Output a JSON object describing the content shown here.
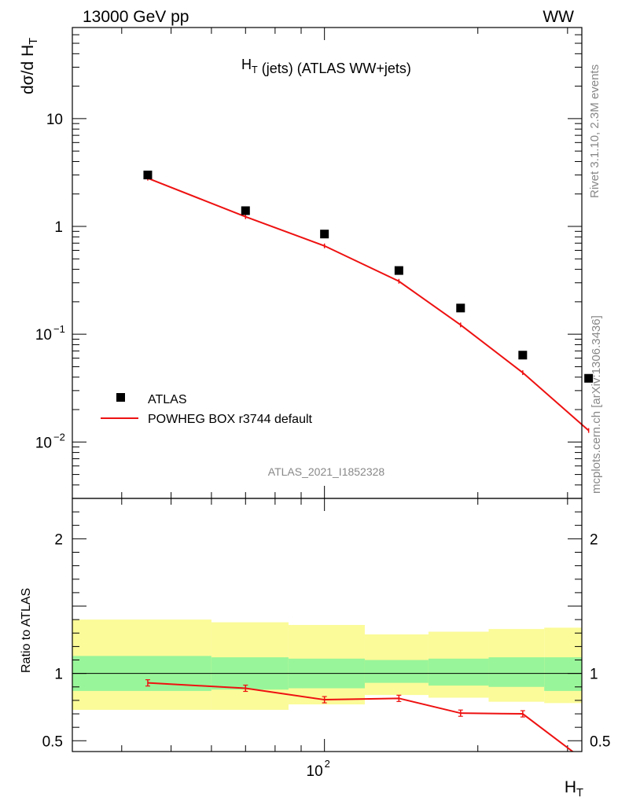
{
  "header": {
    "left": "13000 GeV pp",
    "right": "WW"
  },
  "side_labels": {
    "top": "Rivet 3.1.10,  2.3M events",
    "bottom": "mcplots.cern.ch [arXiv:1306.3436]"
  },
  "analysis_id": "ATLAS_2021_I1852328",
  "colors": {
    "mc": "#ee1111",
    "data": "#000000",
    "band_green": "#99f599",
    "band_yellow": "#fbfb99",
    "ref_line": "#000000"
  },
  "chart_data": [
    {
      "type": "scatter",
      "title": "H_T (jets) (ATLAS WW+jets)",
      "ylabel": "dσ/d H_T",
      "xlabel": "H_T",
      "log_x": true,
      "log_y": true,
      "xlim": [
        32,
        320
      ],
      "ylim": [
        0.003,
        70
      ],
      "y_ticks": [
        {
          "value": 10,
          "label": "10"
        },
        {
          "value": 1,
          "label": "1"
        },
        {
          "value": 0.1,
          "label": "10",
          "sup": "−1"
        },
        {
          "value": 0.01,
          "label": "10",
          "sup": "−2"
        }
      ],
      "legend": {
        "position": "lower-left",
        "entries": [
          "ATLAS",
          "POWHEG BOX r3744 default"
        ]
      },
      "series": [
        {
          "name": "ATLAS",
          "marker": "square",
          "x": [
            45,
            70,
            100,
            140,
            185,
            245,
            330
          ],
          "y": [
            3.0,
            1.4,
            0.85,
            0.39,
            0.175,
            0.064,
            0.039
          ]
        },
        {
          "name": "POWHEG BOX r3744 default",
          "marker": "line",
          "x": [
            45,
            70,
            100,
            140,
            185,
            245,
            330
          ],
          "y": [
            2.8,
            1.23,
            0.66,
            0.31,
            0.122,
            0.044,
            0.0128
          ]
        }
      ]
    },
    {
      "type": "line",
      "ylabel": "Ratio to ATLAS",
      "xlabel": "H_T",
      "log_x": true,
      "xlim": [
        32,
        320
      ],
      "ylim": [
        0.42,
        2.3
      ],
      "y_ticks": [
        {
          "value": 2,
          "label": "2"
        },
        {
          "value": 1,
          "label": "1"
        },
        {
          "value": 0.5,
          "label": "0.5"
        }
      ],
      "x_ticks": [
        {
          "value": 100,
          "label": "10",
          "sup": "2"
        }
      ],
      "reference": 1,
      "bands": [
        {
          "x_range": [
            32,
            60
          ],
          "green": [
            0.87,
            1.13
          ],
          "yellow": [
            0.73,
            1.4
          ]
        },
        {
          "x_range": [
            60,
            85
          ],
          "green": [
            0.88,
            1.12
          ],
          "yellow": [
            0.73,
            1.38
          ]
        },
        {
          "x_range": [
            85,
            120
          ],
          "green": [
            0.89,
            1.11
          ],
          "yellow": [
            0.77,
            1.36
          ]
        },
        {
          "x_range": [
            120,
            160
          ],
          "green": [
            0.93,
            1.1
          ],
          "yellow": [
            0.84,
            1.29
          ]
        },
        {
          "x_range": [
            160,
            210
          ],
          "green": [
            0.91,
            1.11
          ],
          "yellow": [
            0.82,
            1.31
          ]
        },
        {
          "x_range": [
            210,
            270
          ],
          "green": [
            0.9,
            1.12
          ],
          "yellow": [
            0.79,
            1.33
          ]
        },
        {
          "x_range": [
            270,
            320
          ],
          "green": [
            0.87,
            1.12
          ],
          "yellow": [
            0.78,
            1.34
          ]
        }
      ],
      "series": [
        {
          "name": "POWHEG BOX r3744 default",
          "x": [
            45,
            70,
            100,
            140,
            185,
            245,
            330
          ],
          "y": [
            0.93,
            0.89,
            0.805,
            0.815,
            0.705,
            0.7,
            0.33
          ]
        }
      ]
    }
  ]
}
